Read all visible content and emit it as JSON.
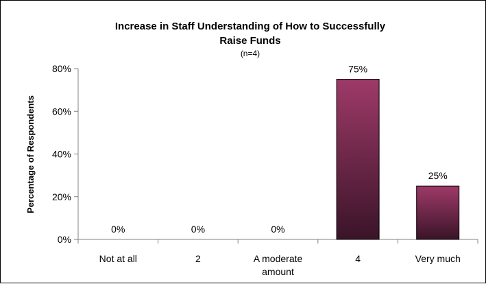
{
  "chart_data": {
    "type": "bar",
    "title_lines": [
      "Increase in Staff Understanding of How to Successfully",
      "Raise Funds"
    ],
    "subtitle": "(n=4)",
    "xlabel": "",
    "ylabel": "Percentage of Respondents",
    "categories": [
      [
        "Not at all"
      ],
      [
        "2"
      ],
      [
        "A moderate",
        "amount"
      ],
      [
        "4"
      ],
      [
        "Very much"
      ]
    ],
    "values": [
      0,
      0,
      0,
      75,
      25
    ],
    "data_labels": [
      "0%",
      "0%",
      "0%",
      "75%",
      "25%"
    ],
    "ylim": [
      0,
      80
    ],
    "yticks": [
      0,
      20,
      40,
      60,
      80
    ],
    "ytick_labels": [
      "0%",
      "20%",
      "40%",
      "60%",
      "80%"
    ],
    "grid": false,
    "legend": "none",
    "bar_color_top": "#9e3a68",
    "bar_color_bottom": "#3a1428",
    "axis_color": "#808080"
  }
}
